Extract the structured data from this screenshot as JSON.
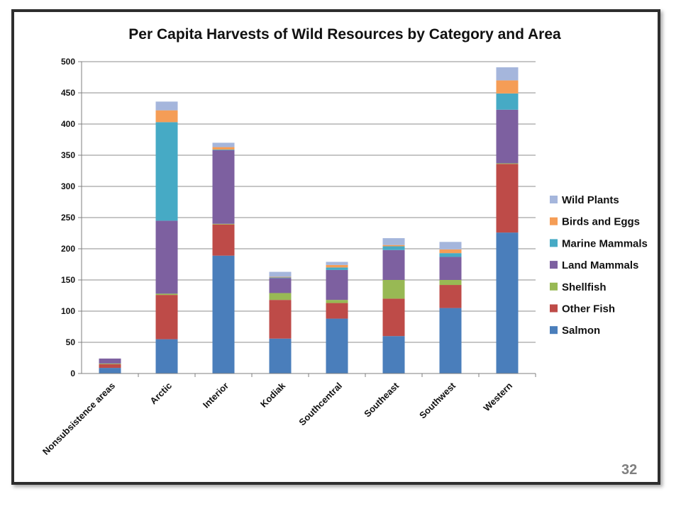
{
  "slide_number": "32",
  "chart_data": {
    "type": "bar",
    "stacked": true,
    "title": "Per Capita Harvests of Wild Resources by Category and Area",
    "xlabel": "",
    "ylabel": "",
    "ylim": [
      0,
      500
    ],
    "yticks": [
      0,
      50,
      100,
      150,
      200,
      250,
      300,
      350,
      400,
      450,
      500
    ],
    "grid": true,
    "legend_position": "right",
    "categories": [
      "Nonsubsistence areas",
      "Arctic",
      "Interior",
      "Kodiak",
      "Southcentral",
      "Southeast",
      "Southwest",
      "Western"
    ],
    "series": [
      {
        "name": "Salmon",
        "color": "#4a7ebb",
        "values": [
          9,
          55,
          189,
          56,
          88,
          60,
          105,
          226
        ]
      },
      {
        "name": "Other Fish",
        "color": "#be4b48",
        "values": [
          6,
          71,
          50,
          62,
          25,
          60,
          37,
          110
        ]
      },
      {
        "name": "Shellfish",
        "color": "#98b954",
        "values": [
          1,
          2,
          1,
          11,
          5,
          30,
          8,
          1
        ]
      },
      {
        "name": "Land Mammals",
        "color": "#7d60a0",
        "values": [
          8,
          117,
          118,
          24,
          48,
          48,
          37,
          86
        ]
      },
      {
        "name": "Marine Mammals",
        "color": "#46aac5",
        "values": [
          0,
          158,
          1,
          1,
          4,
          6,
          6,
          26
        ]
      },
      {
        "name": "Birds and Eggs",
        "color": "#f59d56",
        "values": [
          0,
          19,
          4,
          1,
          4,
          2,
          6,
          21
        ]
      },
      {
        "name": "Wild Plants",
        "color": "#a5b6dc",
        "values": [
          0,
          14,
          7,
          8,
          5,
          11,
          12,
          21
        ]
      }
    ]
  }
}
